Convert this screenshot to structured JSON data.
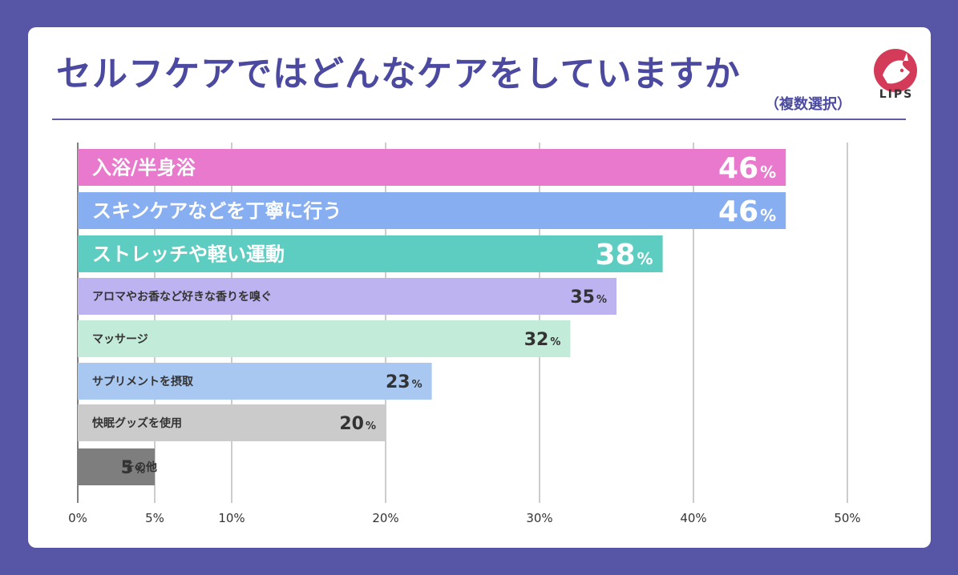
{
  "title": "セルフケアではどんなケアをしていますか",
  "subtitle": "（複数選択）",
  "logo": {
    "text": "LIPS",
    "icon": "deer-logo-icon"
  },
  "chart_data": {
    "type": "bar",
    "orientation": "horizontal",
    "xlim": [
      0,
      50
    ],
    "grid": true,
    "ticks": [
      "0%",
      "5%",
      "10%",
      "20%",
      "30%",
      "40%",
      "50%"
    ],
    "categories": [
      "入浴/半身浴",
      "スキンケアなどを丁寧に行う",
      "ストレッチや軽い運動",
      "アロマやお香など好きな香りを嗅ぐ",
      "マッサージ",
      "サプリメントを摂取",
      "快眠グッズを使用",
      "その他"
    ],
    "values": [
      46,
      46,
      38,
      35,
      32,
      23,
      20,
      5
    ],
    "value_labels": [
      "46",
      "46",
      "38",
      "35",
      "32",
      "23",
      "20",
      "5"
    ],
    "unit": "%",
    "colors": [
      "#e879cc",
      "#86aef1",
      "#5dcdc2",
      "#bdb3f1",
      "#c2ebd9",
      "#a8c7f1",
      "#cbcbcb",
      "#7e7e7e"
    ]
  }
}
